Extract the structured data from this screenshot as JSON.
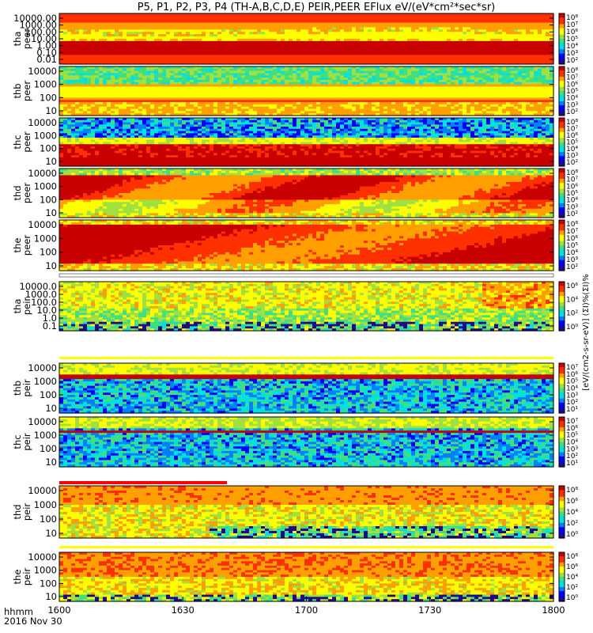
{
  "header": {
    "title": "P5, P1, P2, P3, P4 (TH-A,B,C,D,E) PEIR,PEER EFlux eV/(eV*cm²*sec*sr)"
  },
  "footer": {
    "hhmm_label": "hhmm",
    "date_label": "2016 Nov 30"
  },
  "colorbar_title": "[eV/(cm2-s-sr-eV)] (ΣI)%(ΣI)%",
  "chart_data": {
    "type": "heatmap",
    "x_ticks": [
      "1600",
      "1630",
      "1700",
      "1730",
      "1800"
    ],
    "x_range": [
      "16:00",
      "18:00"
    ],
    "panels": [
      {
        "probe": "tha",
        "species": "peer",
        "y_ticks": [
          "10000.00",
          "1000.00",
          "100.00",
          "10.00",
          "1.00",
          "0.10",
          "0.01"
        ],
        "cb_ticks": [
          "10⁸",
          "10⁷",
          "10⁶",
          "10⁵",
          "10⁴",
          "10³",
          "10²"
        ],
        "pattern": "tha_peer"
      },
      {
        "probe": "thb",
        "species": "peer",
        "y_ticks": [
          "10000",
          "1000",
          "100",
          "10"
        ],
        "cb_ticks": [
          "10⁸",
          "10⁷",
          "10⁶",
          "10⁵",
          "10⁴",
          "10³",
          "10²"
        ],
        "pattern": "thb_peer"
      },
      {
        "probe": "thc",
        "species": "peer",
        "y_ticks": [
          "10000",
          "1000",
          "100",
          "10"
        ],
        "cb_ticks": [
          "10⁸",
          "10⁷",
          "10⁶",
          "10⁵",
          "10⁴",
          "10³",
          "10²"
        ],
        "pattern": "thc_peer"
      },
      {
        "probe": "thd",
        "species": "peer",
        "y_ticks": [
          "10000",
          "1000",
          "100",
          "10"
        ],
        "cb_ticks": [
          "10⁸",
          "10⁷",
          "10⁶",
          "10⁵",
          "10⁴",
          "10³",
          "10²"
        ],
        "pattern": "thd_peer"
      },
      {
        "probe": "the",
        "species": "peer",
        "y_ticks": [
          "10000",
          "1000",
          "100",
          "10"
        ],
        "cb_ticks": [
          "10⁸",
          "10⁷",
          "10⁶",
          "10⁵",
          "10⁴",
          "10³",
          "10²"
        ],
        "pattern": "the_peer"
      },
      {
        "probe": "tha",
        "species": "peir",
        "y_ticks": [
          "10000.0",
          "1000.0",
          "100.0",
          "10.0",
          "1.0",
          "0.1"
        ],
        "cb_ticks": [
          "10⁶",
          "10⁴",
          "10²",
          "10⁰"
        ],
        "pattern": "tha_peir"
      },
      {
        "probe": "thb",
        "species": "peir",
        "y_ticks": [
          "10000",
          "1000",
          "100",
          "10"
        ],
        "cb_ticks": [
          "10⁷",
          "10⁶",
          "10⁵",
          "10⁴",
          "10³",
          "10²",
          "10¹"
        ],
        "pattern": "thb_peir"
      },
      {
        "probe": "thc",
        "species": "peir",
        "y_ticks": [
          "10000",
          "1000",
          "100",
          "10"
        ],
        "cb_ticks": [
          "10⁷",
          "10⁶",
          "10⁵",
          "10⁴",
          "10³",
          "10²",
          "10¹"
        ],
        "pattern": "thc_peir"
      },
      {
        "probe": "thd",
        "species": "peir",
        "y_ticks": [
          "10000",
          "1000",
          "100",
          "10"
        ],
        "cb_ticks": [
          "10⁸",
          "10⁶",
          "10⁴",
          "10²",
          "10⁰"
        ],
        "pattern": "thd_peir"
      },
      {
        "probe": "the",
        "species": "peir",
        "y_ticks": [
          "10000",
          "1000",
          "100",
          "10"
        ],
        "cb_ticks": [
          "10⁸",
          "10⁶",
          "10⁴",
          "10²",
          "10⁰"
        ],
        "pattern": "the_peir"
      }
    ]
  },
  "colors": {
    "colormap": [
      "#1e0a8c",
      "#0000ff",
      "#0080ff",
      "#00e0e0",
      "#40e080",
      "#a0e040",
      "#ffff00",
      "#ffa000",
      "#ff3000",
      "#c80000"
    ],
    "red_bar": "#ff0000",
    "yellow_line": "#ffff00"
  }
}
